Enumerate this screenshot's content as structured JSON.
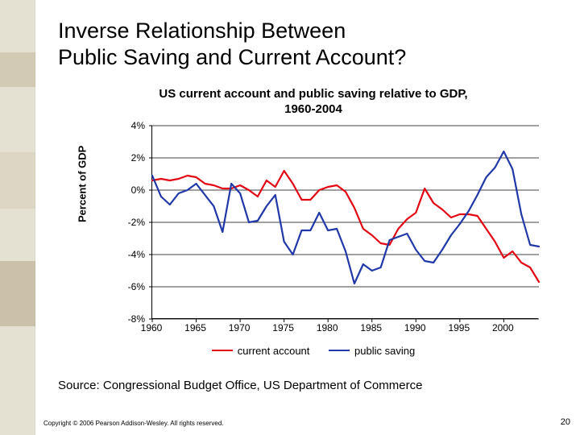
{
  "slide": {
    "title_line1": "Inverse Relationship Between",
    "title_line2": "Public Saving and Current Account?",
    "source": "Source:  Congressional Budget Office, US Department of Commerce",
    "copyright": "Copyright © 2006 Pearson Addison-Wesley. All rights reserved.",
    "page_number": "20"
  },
  "chart": {
    "type": "line",
    "title_line1": "US current account and public saving relative to GDP,",
    "title_line2": "1960-2004",
    "y_axis_label": "Percent of GDP",
    "ylim": [
      -8,
      4
    ],
    "ytick_step": 2,
    "ytick_labels": [
      "-8%",
      "-6%",
      "-4%",
      "-2%",
      "0%",
      "2%",
      "4%"
    ],
    "xlim": [
      1960,
      2004
    ],
    "xtick_step": 5,
    "xtick_labels": [
      "1960",
      "1965",
      "1970",
      "1975",
      "1980",
      "1985",
      "1990",
      "1995",
      "2000"
    ],
    "grid_color": "#000000",
    "grid_width": 0.8,
    "background_color": "#ffffff",
    "line_width": 2.2,
    "series": [
      {
        "name": "current account",
        "color": "#e30613",
        "years": [
          1960,
          1961,
          1962,
          1963,
          1964,
          1965,
          1966,
          1967,
          1968,
          1969,
          1970,
          1971,
          1972,
          1973,
          1974,
          1975,
          1976,
          1977,
          1978,
          1979,
          1980,
          1981,
          1982,
          1983,
          1984,
          1985,
          1986,
          1987,
          1988,
          1989,
          1990,
          1991,
          1992,
          1993,
          1994,
          1995,
          1996,
          1997,
          1998,
          1999,
          2000,
          2001,
          2002,
          2003,
          2004
        ],
        "values": [
          0.6,
          0.7,
          0.6,
          0.7,
          0.9,
          0.8,
          0.4,
          0.3,
          0.1,
          0.1,
          0.3,
          0.0,
          -0.4,
          0.6,
          0.2,
          1.2,
          0.4,
          -0.6,
          -0.6,
          0.0,
          0.2,
          0.3,
          -0.1,
          -1.1,
          -2.4,
          -2.8,
          -3.3,
          -3.4,
          -2.4,
          -1.8,
          -1.4,
          0.1,
          -0.8,
          -1.2,
          -1.7,
          -1.5,
          -1.5,
          -1.6,
          -2.4,
          -3.2,
          -4.2,
          -3.8,
          -4.5,
          -4.8,
          -5.7
        ]
      },
      {
        "name": "public saving",
        "color": "#2038a8",
        "years": [
          1960,
          1961,
          1962,
          1963,
          1964,
          1965,
          1966,
          1967,
          1968,
          1969,
          1970,
          1971,
          1972,
          1973,
          1974,
          1975,
          1976,
          1977,
          1978,
          1979,
          1980,
          1981,
          1982,
          1983,
          1984,
          1985,
          1986,
          1987,
          1988,
          1989,
          1990,
          1991,
          1992,
          1993,
          1994,
          1995,
          1996,
          1997,
          1998,
          1999,
          2000,
          2001,
          2002,
          2003,
          2004
        ],
        "values": [
          0.9,
          -0.4,
          -0.9,
          -0.2,
          0.0,
          0.4,
          -0.3,
          -1.0,
          -2.6,
          0.4,
          -0.2,
          -2.0,
          -1.9,
          -1.0,
          -0.3,
          -3.2,
          -4.0,
          -2.5,
          -2.5,
          -1.4,
          -2.5,
          -2.4,
          -3.8,
          -5.8,
          -4.6,
          -5.0,
          -4.8,
          -3.1,
          -2.9,
          -2.7,
          -3.7,
          -4.4,
          -4.5,
          -3.7,
          -2.8,
          -2.1,
          -1.3,
          -0.3,
          0.8,
          1.4,
          2.4,
          1.3,
          -1.5,
          -3.4,
          -3.5
        ]
      }
    ],
    "legend_labels": [
      "current account",
      "public saving"
    ]
  }
}
